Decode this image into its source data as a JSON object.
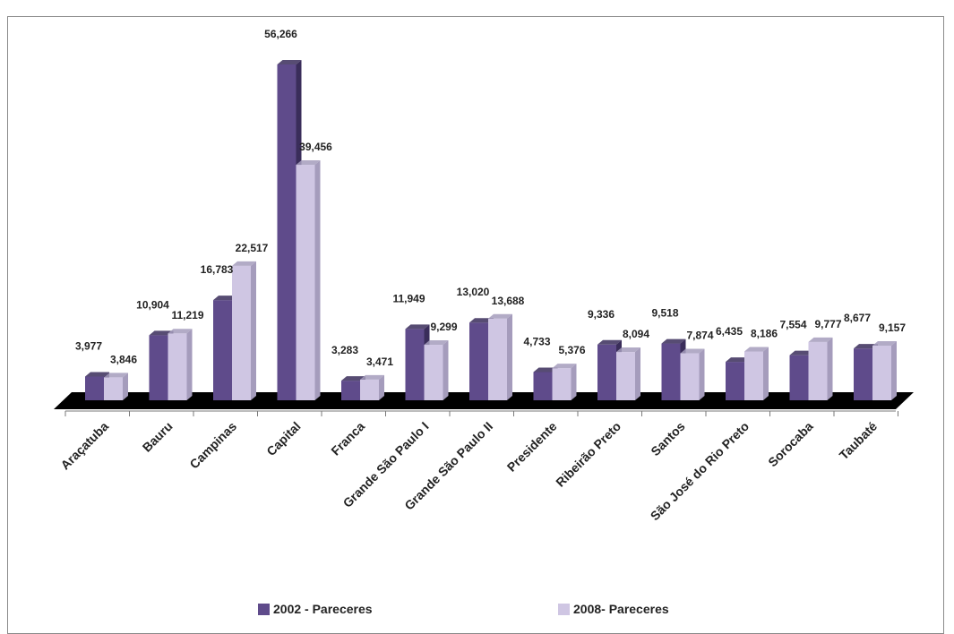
{
  "chart_data": {
    "type": "bar",
    "categories": [
      "Araçatuba",
      "Bauru",
      "Campinas",
      "Capital",
      "Franca",
      "Grande São Paulo I",
      "Grande São Paulo II",
      "Presidente",
      "Ribeirão Preto",
      "Santos",
      "São José do Rio Preto",
      "Sorocaba",
      "Taubaté"
    ],
    "series": [
      {
        "name": "2002 - Pareceres",
        "values": [
          3977,
          10904,
          16783,
          56266,
          3283,
          11949,
          13020,
          4733,
          9336,
          9518,
          6435,
          7554,
          8677
        ],
        "labels": [
          "3,977",
          "10,904",
          "16,783",
          "56,266",
          "3,283",
          "11,949",
          "13,020",
          "4,733",
          "9,336",
          "9,518",
          "6,435",
          "7,554",
          "8,677"
        ],
        "color": "#5f4b8b",
        "side_color": "#3a2d5a"
      },
      {
        "name": "2008- Pareceres",
        "values": [
          3846,
          11219,
          22517,
          39456,
          3471,
          9299,
          13688,
          5376,
          8094,
          7874,
          8186,
          9777,
          9157
        ],
        "labels": [
          "3,846",
          "11,219",
          "22,517",
          "39,456",
          "3,471",
          "9,299",
          "13,688",
          "5,376",
          "8,094",
          "7,874",
          "8,186",
          "9,777",
          "9,157"
        ],
        "color": "#cfc6e3",
        "side_color": "#a59cbc"
      }
    ],
    "ylim": [
      0,
      60000
    ],
    "legend_position": "bottom",
    "grid": false
  }
}
